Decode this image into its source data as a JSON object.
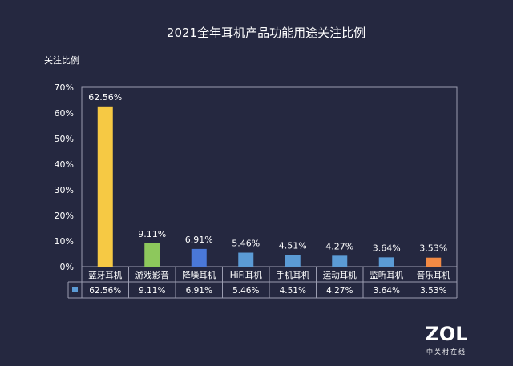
{
  "chart_data": {
    "type": "bar",
    "title": "2021全年耳机产品功能用途关注比例",
    "ylabel": "关注比例",
    "xlabel": "",
    "ylim": [
      0,
      70
    ],
    "yticks": [
      "0%",
      "10%",
      "20%",
      "30%",
      "40%",
      "50%",
      "60%",
      "70%"
    ],
    "grid": false,
    "legend": "data-table",
    "categories": [
      "蓝牙耳机",
      "游戏影音",
      "降噪耳机",
      "HiFi耳机",
      "手机耳机",
      "运动耳机",
      "监听耳机",
      "音乐耳机"
    ],
    "values": [
      62.56,
      9.11,
      6.91,
      5.46,
      4.51,
      4.27,
      3.64,
      3.53
    ],
    "data_labels": [
      "62.56%",
      "9.11%",
      "6.91%",
      "5.46%",
      "4.51%",
      "4.27%",
      "3.64%",
      "3.53%"
    ],
    "colors": [
      "#f6c944",
      "#8dc85c",
      "#4a78d8",
      "#5b9bd5",
      "#5b9bd5",
      "#5b9bd5",
      "#5b9bd5",
      "#f28a44"
    ],
    "legend_color": "#5b9bd5"
  },
  "logo": {
    "text": "ZOL",
    "subtext": "中关村在线"
  }
}
